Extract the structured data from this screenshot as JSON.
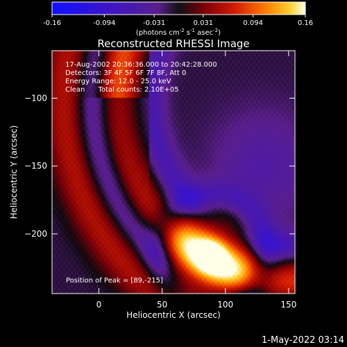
{
  "chart_data": {
    "type": "heatmap",
    "title": "Reconstructed RHESSI Image",
    "xlabel": "Heliocentric X (arcsec)",
    "ylabel": "Heliocentric Y (arcsec)",
    "xlim": [
      -37,
      155
    ],
    "ylim": [
      -244,
      -65
    ],
    "x_ticks": [
      0,
      50,
      100,
      150
    ],
    "y_ticks": [
      -100,
      -150,
      -200
    ],
    "colorbar": {
      "ticks": [
        "-0.16",
        "-0.094",
        "-0.031",
        "0.031",
        "0.094",
        "0.16"
      ],
      "range": [
        -0.16,
        0.16
      ],
      "units_base": "(photons cm",
      "units_exp1": "-2",
      "units_mid": " s",
      "units_exp2": "-1",
      "units_mid2": " asec",
      "units_exp3": "-2",
      "units_end": ")"
    },
    "annotations": [
      "17-Aug-2002 20:36:36.000 to 20:42:28.000",
      "Detectors: 3F 4F 5F 6F 7F 8F, Att 0",
      "Energy Range: 12.0 - 25.0 keV",
      "Clean      Total counts: 2.10E+05"
    ],
    "peak_label": "Position of Peak = [89,-215]",
    "peak": {
      "x": 89,
      "y": -215
    },
    "features": [
      {
        "kind": "peak",
        "x": 89,
        "y": -215,
        "value": 0.16
      },
      {
        "kind": "arc",
        "center_x": 150,
        "center_y": -100,
        "radius": 135,
        "value": 0.085
      }
    ]
  },
  "footer_date": "1-May-2022 03:14",
  "colors": {
    "background": "#000000",
    "low": "#0000ff",
    "mid": "#000000",
    "high": "#ffffff"
  }
}
